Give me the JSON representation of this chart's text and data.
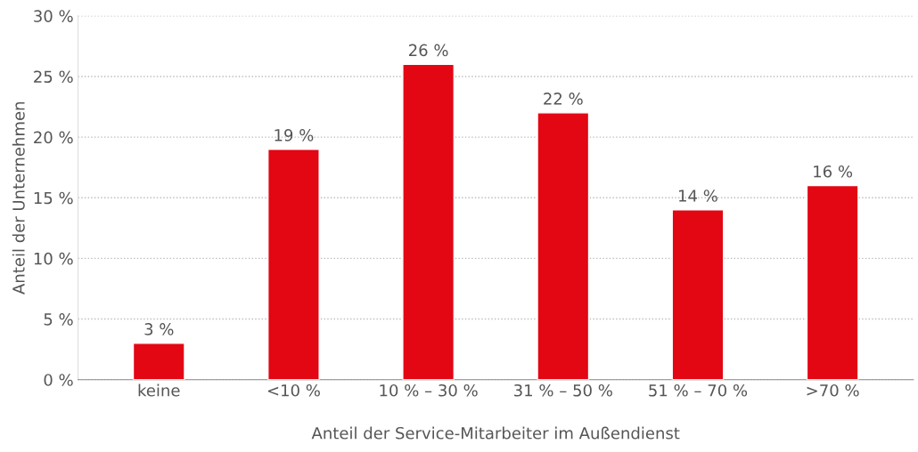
{
  "chart_data": {
    "type": "bar",
    "xlabel": "Anteil der Service-Mitarbeiter im Außendienst",
    "ylabel": "Anteil der Unternehmen",
    "categories": [
      "keine",
      "<10 %",
      "10 % – 30 %",
      "31 % – 50 %",
      "51 % – 70 %",
      ">70 %"
    ],
    "values": [
      3,
      19,
      26,
      22,
      14,
      16
    ],
    "value_labels": [
      "3 %",
      "19 %",
      "26 %",
      "22 %",
      "14 %",
      "16 %"
    ],
    "color": "#e30613",
    "ylim": [
      0,
      30
    ],
    "yticks": [
      {
        "value": 0,
        "label": "0 %"
      },
      {
        "value": 5,
        "label": "5 %"
      },
      {
        "value": 10,
        "label": "10 %"
      },
      {
        "value": 15,
        "label": "15 %"
      },
      {
        "value": 20,
        "label": "20 %"
      },
      {
        "value": 25,
        "label": "25 %"
      },
      {
        "value": 30,
        "label": "30 %"
      }
    ],
    "grid": "y"
  }
}
